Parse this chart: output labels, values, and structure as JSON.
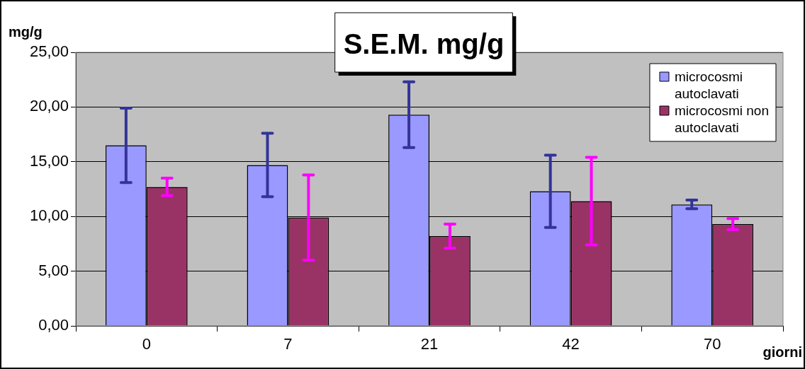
{
  "chart_data": {
    "type": "bar",
    "title": "S.E.M. mg/g",
    "ylabel": "mg/g",
    "xlabel": "giorni",
    "categories": [
      "0",
      "7",
      "21",
      "42",
      "70"
    ],
    "series": [
      {
        "name": "microcosmi autoclavati",
        "color": "#9999ff",
        "values": [
          16.5,
          14.7,
          19.3,
          12.3,
          11.1
        ],
        "errors": [
          3.4,
          2.9,
          3.0,
          3.3,
          0.4
        ]
      },
      {
        "name": "microcosmi non autoclavati",
        "color": "#993366",
        "values": [
          12.7,
          9.9,
          8.2,
          11.4,
          9.3
        ],
        "errors": [
          0.8,
          3.9,
          1.1,
          4.0,
          0.5
        ]
      }
    ],
    "ylim": [
      0,
      25
    ],
    "yticks": [
      {
        "value": 0,
        "label": "0,00"
      },
      {
        "value": 5,
        "label": "5,00"
      },
      {
        "value": 10,
        "label": "10,00"
      },
      {
        "value": 15,
        "label": "15,00"
      },
      {
        "value": 20,
        "label": "20,00"
      },
      {
        "value": 25,
        "label": "25,00"
      }
    ],
    "grid": "y",
    "legend": "top right"
  }
}
